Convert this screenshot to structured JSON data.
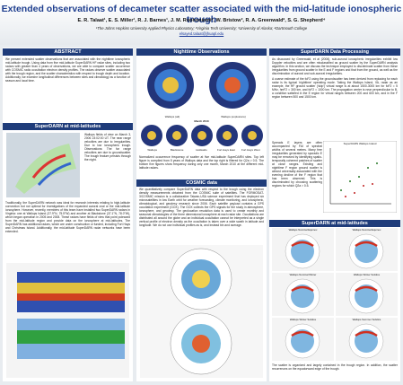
{
  "header": {
    "title": "Extended observations of decameter scatter associated with the mid-latitude ionospheric trough",
    "authors": "E. R. Talaat¹, E. S. Miller¹, R. J. Barnes¹, J. M. Ruohoniemi², W. Bristow³, R. A. Greenwald², S. G. Shepherd⁴",
    "affiliations": "¹The Johns Hopkins University Applied Physics Laboratory; ²Virginia Tech University; ³University of Alaska; ⁴Dartmouth College",
    "email": "elsayed.talaat@jhuapl.edu"
  },
  "left": {
    "abstract": {
      "heading": "ABSTRACT",
      "text": "We present extended scatter observations that are associated with the nighttime ionospheric mid-latitude trough. Using data from five mid-latitude SuperDARN HF radar sites, including two radars with greater than 4 years of observations, we are able to compare scatter occurrence with COSMIC radio occultation electron density profiles. The radars observe scatter associated with the trough region, and the scatter characteristics with respect to trough depth and location. Additionally, we examine longitudinal differences between sites and climatology as a function of season and local time."
    },
    "midlat": {
      "heading": "SuperDARN at mid-latitudes",
      "caption": "Wallops fields of view on March 3, 2006 23:02:00 UT. The near range velocities are due to irregularities. Due to low ionospheric trough. Observations: The far range velocities are due to groundscatter. The trough feature persists through the night.",
      "text": "Traditionally, the SuperDARN network was ideal for research interests relating to high-latitude convection but not optimal for investigations of the expanded auroral oval or the mid-latitude ionosphere. However, recently, members of this team have installed two SuperDARN radars in Virginia: one at Wallops Island (37.9°N, 75.5°W) and another at Blackstone (37.1°N, 78.0°W), which began operation in 2005 and 2008. These radars have fields of view that point poleward from the mid-latitude region and provide data on the ionosphere at mid-latitudes. The SuperDARN has additional radars, which are under construction or funded, including Fort Hays and Christmas Island. Additionally, the mid-latitude SuperDARN radar networks have been extended."
    }
  },
  "middle": {
    "night": {
      "heading": "Nighttime Observations",
      "panels": [
        "Wallops (alt)",
        "Wallops (explosions)"
      ],
      "month": "March 2010",
      "sites": [
        "Wallops",
        "Blackstone",
        "Hokkaido",
        "Fort Hays East",
        "Fort Hays West"
      ],
      "caption": "Normalized occurrence frequency of scatter at five mid-latitude SuperDARN sites. Top left figure is compiled from 5 years of Wallops data and the top right is filtered for Q2a > 0.5. The bottom five figures show frequency during only one month, March 2010 at the different mid-latitude radars."
    },
    "cosmic": {
      "heading": "COSMIC data",
      "text": "We quantitatively compare SuperDARN data with respect to the trough using the electron density measurements obtained from the COSMIC suite of satellites. The FORMOSAT-3/COSMIC mission is a collaborative Taiwan-USA science experiment that has deployed six microsatellites in low Earth orbit for weather forecasting, climate monitoring, and ionospheric, climatological, and geodesy research since 2006. Each satellite payload contains a GPS occultation experiment (GOX). The GOX collects the GPS signals for the study in atmosphere, ionosphere, and geodesy. The geolocation resolution data is used to create monthly and seasonal climatologies of the three dimensional ionosphere at each radar site. Occultations are distributed all around the globe and an individual occultation cannot be interpreted as a single vertical profile of electron density as the occultation is taken over a wide swath in latitude and longitude. We do not use individual profiles as is, and instead bin and average."
    }
  },
  "right": {
    "processing": {
      "heading": "SuperDARN Data Processing",
      "text1": "As discussed by Greenwald, et al (2006), sub-auroral ionospheric irregularities exhibit low Doppler velocities and are often misclassified as ground scatter by the SuperDARN analysis algorithm. In this section, we discuss the technique employed to discriminate scatter from these irregularities from ground scatter in the E and F regions and that from the ground, as well as the discrimination of auroral and sub-auroral irregularities.",
      "text2": "A coarse estimate of the foF2 using the groundscatter has been derived from replacing for each radar is its typical 'nighttime' operating mode. Taking the Wallops Island, VA, radar as an example, the HF ground scatter ('skip') virtual range is at about 1500-3000 km for foF2 = 5 MHz, hmF2 = 300 km, and foF2 = 1000 km. The propagation center is near perpendicular to B, a condition satisfied in the E region for virtual ranges between 200 and 600 km, and in the F region between 500 and 1500 km.",
      "text3": "Spreads E layers are often accompanied by FAI of spectral widths of several meters. Many free irregularities generated by sporadic E may be removed by identifying spatio-temporally coherent patches of scatter at close ranges. Existing and nighttime F region ground scatter is almost universally associated with the evening decline of the F region that has been observed. This is discriminated by choosing scattering regions for which Q2a > 0.5.",
      "figure": "SuperDARN Wallops Island"
    },
    "midlat": {
      "heading": "SuperDARN at mid-latitudes",
      "maps": [
        "Wallops Nominal Equinox",
        "Wallops Nominal Equinox",
        "Wallops Nominal Winter",
        "Wallops Winter Solstice",
        "Wallops Winter Solstice",
        "Wallops Summer Solstice"
      ],
      "caption": "The scatter is organized and largely contained in the trough region. In addition, the scatter recurrences on the equatorward edge of the trough."
    }
  }
}
